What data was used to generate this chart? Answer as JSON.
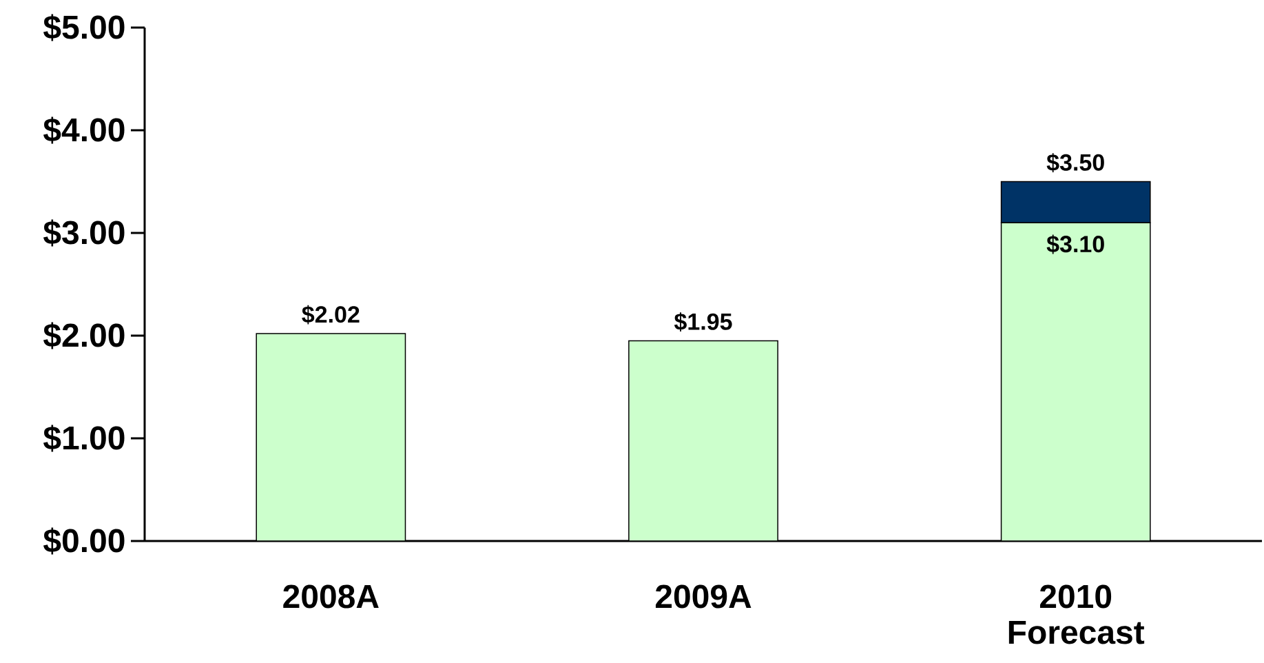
{
  "chart_data": {
    "type": "bar",
    "stacked": true,
    "categories": [
      "2008A",
      "2009A",
      "2010 Forecast"
    ],
    "series": [
      {
        "color": "#ccffcc",
        "values": [
          2.02,
          1.95,
          3.1
        ],
        "value_labels": [
          "$2.02",
          "$1.95",
          "$3.10"
        ]
      },
      {
        "color": "#003366",
        "values": [
          null,
          null,
          0.4
        ]
      }
    ],
    "totals": [
      null,
      null,
      "$3.50"
    ],
    "ylim": [
      0,
      5
    ],
    "yticks": [
      {
        "value": 0,
        "label": "$0.00"
      },
      {
        "value": 1,
        "label": "$1.00"
      },
      {
        "value": 2,
        "label": "$2.00"
      },
      {
        "value": 3,
        "label": "$3.00"
      },
      {
        "value": 4,
        "label": "$4.00"
      },
      {
        "value": 5,
        "label": "$5.00"
      }
    ]
  }
}
